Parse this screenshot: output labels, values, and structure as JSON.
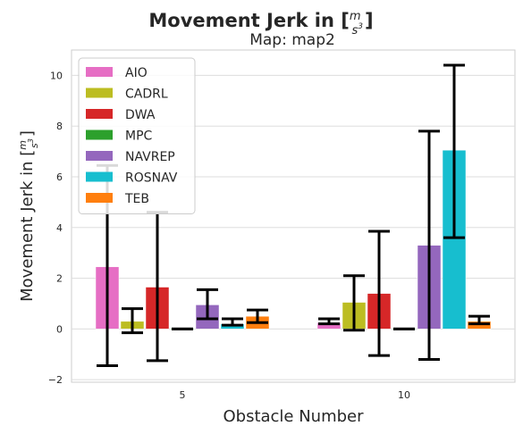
{
  "chart_data": {
    "type": "bar",
    "title": "Movement Jerk in [m/s³]",
    "title_prefix": "Movement Jerk in [",
    "subtitle": "Map: map2",
    "xlabel": "Obstacle Number",
    "ylabel_prefix": "Movement Jerk in [",
    "unit_num": "m",
    "unit_den": "s",
    "unit_exp": "3",
    "bracket_close": "]",
    "categories": [
      "5",
      "10"
    ],
    "ylim": [
      -2.1,
      11.0
    ],
    "yticks": [
      -2,
      0,
      2,
      4,
      6,
      8,
      10
    ],
    "ytick_labels": [
      "−2",
      "0",
      "2",
      "4",
      "6",
      "8",
      "10"
    ],
    "grid": true,
    "legend_position": "top-left",
    "series": [
      {
        "name": "AIO",
        "color": "#e66ec4",
        "values": [
          2.45,
          0.25
        ],
        "error": [
          [
            -1.45,
            6.45
          ],
          [
            0.2,
            0.4
          ]
        ]
      },
      {
        "name": "CADRL",
        "color": "#bcbd22",
        "values": [
          0.3,
          1.05
        ],
        "error": [
          [
            -0.15,
            0.8
          ],
          [
            -0.05,
            2.1
          ]
        ]
      },
      {
        "name": "DWA",
        "color": "#d62728",
        "values": [
          1.65,
          1.4
        ],
        "error": [
          [
            -1.25,
            4.6
          ],
          [
            -1.05,
            3.85
          ]
        ]
      },
      {
        "name": "MPC",
        "color": "#2ca02c",
        "values": [
          0.02,
          0.02
        ],
        "error": [
          [
            0.0,
            0.0
          ],
          [
            0.0,
            0.0
          ]
        ]
      },
      {
        "name": "NAVREP",
        "color": "#9467bd",
        "values": [
          0.95,
          3.3
        ],
        "error": [
          [
            0.4,
            1.55
          ],
          [
            -1.2,
            7.8
          ]
        ]
      },
      {
        "name": "ROSNAV",
        "color": "#17becf",
        "values": [
          0.2,
          7.05
        ],
        "error": [
          [
            0.15,
            0.4
          ],
          [
            3.6,
            10.4
          ]
        ]
      },
      {
        "name": "TEB",
        "color": "#ff7f0e",
        "values": [
          0.5,
          0.3
        ],
        "error": [
          [
            0.25,
            0.75
          ],
          [
            0.2,
            0.5
          ]
        ]
      }
    ]
  }
}
